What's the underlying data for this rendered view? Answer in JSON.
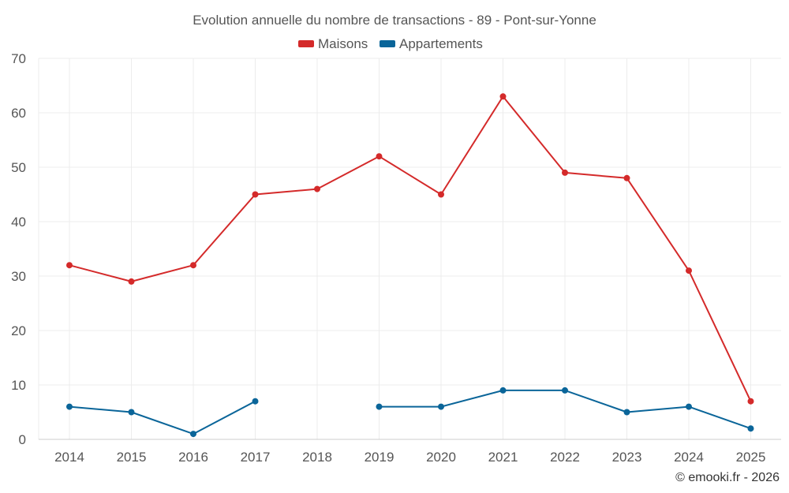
{
  "chart_data": {
    "type": "line",
    "title": "Evolution annuelle du nombre de transactions - 89 - Pont-sur-Yonne",
    "categories": [
      "2014",
      "2015",
      "2016",
      "2017",
      "2018",
      "2019",
      "2020",
      "2021",
      "2022",
      "2023",
      "2024",
      "2025"
    ],
    "series": [
      {
        "name": "Maisons",
        "color": "#d42a2a",
        "values": [
          32,
          29,
          32,
          45,
          46,
          52,
          45,
          63,
          49,
          48,
          31,
          7
        ]
      },
      {
        "name": "Appartements",
        "color": "#0a6599",
        "values": [
          6,
          5,
          1,
          7,
          null,
          6,
          6,
          9,
          9,
          5,
          6,
          2
        ]
      }
    ],
    "ylim": [
      0,
      70
    ],
    "yticks": [
      0,
      10,
      20,
      30,
      40,
      50,
      60,
      70
    ],
    "xlabel": "",
    "ylabel": "",
    "grid": true,
    "legend": "top-center"
  },
  "credit": "© emooki.fr - 2026"
}
